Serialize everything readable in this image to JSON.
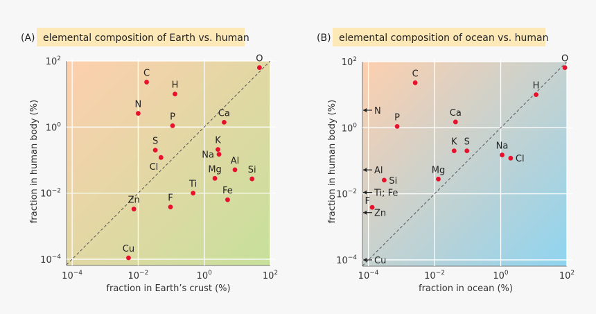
{
  "chart_data": [
    {
      "type": "scatter",
      "panel_label": "(A)",
      "title": "elemental composition of Earth vs. human",
      "xlabel": "fraction in Earth’s crust (%)",
      "ylabel": "fraction in human body (%)",
      "xscale": "log",
      "yscale": "log",
      "xlim": [
        0.0001,
        100
      ],
      "ylim": [
        0.0001,
        100
      ],
      "xtick_labels": [
        {
          "base": "10",
          "exp": "−4"
        },
        {
          "base": "10",
          "exp": "−2"
        },
        {
          "base": "10",
          "exp": "0"
        },
        {
          "base": "10",
          "exp": "2"
        }
      ],
      "ytick_labels": [
        {
          "base": "10",
          "exp": "2"
        },
        {
          "base": "10",
          "exp": "0"
        },
        {
          "base": "10",
          "exp": "−2"
        },
        {
          "base": "10",
          "exp": "−4"
        }
      ],
      "grid": true,
      "reference_line": "y = x (dashed)",
      "background_colors": [
        "#fdcfae",
        "#c6e09a"
      ],
      "point_color": "#e8112d",
      "points": [
        {
          "label": "C",
          "x": 0.018,
          "y": 23,
          "label_pos": "above"
        },
        {
          "label": "H",
          "x": 0.13,
          "y": 10,
          "label_pos": "above"
        },
        {
          "label": "N",
          "x": 0.01,
          "y": 2.6,
          "label_pos": "above"
        },
        {
          "label": "P",
          "x": 0.11,
          "y": 1.1,
          "label_pos": "above"
        },
        {
          "label": "Ca",
          "x": 4.0,
          "y": 1.4,
          "label_pos": "above"
        },
        {
          "label": "O",
          "x": 47,
          "y": 63,
          "label_pos": "above"
        },
        {
          "label": "S",
          "x": 0.033,
          "y": 0.2,
          "label_pos": "above"
        },
        {
          "label": "Cl",
          "x": 0.049,
          "y": 0.12,
          "label_pos": "below-left"
        },
        {
          "label": "K",
          "x": 2.6,
          "y": 0.21,
          "label_pos": "above"
        },
        {
          "label": "Na",
          "x": 2.8,
          "y": 0.15,
          "label_pos": "left"
        },
        {
          "label": "Al",
          "x": 8.5,
          "y": 0.051,
          "label_pos": "above"
        },
        {
          "label": "Si",
          "x": 28,
          "y": 0.027,
          "label_pos": "above"
        },
        {
          "label": "Mg",
          "x": 2.1,
          "y": 0.028,
          "label_pos": "above"
        },
        {
          "label": "Ti",
          "x": 0.46,
          "y": 0.01,
          "label_pos": "above"
        },
        {
          "label": "Fe",
          "x": 5.1,
          "y": 0.0063,
          "label_pos": "above"
        },
        {
          "label": "Zn",
          "x": 0.0074,
          "y": 0.0033,
          "label_pos": "above"
        },
        {
          "label": "F",
          "x": 0.095,
          "y": 0.0038,
          "label_pos": "above"
        },
        {
          "label": "Cu",
          "x": 0.0051,
          "y": 0.00011,
          "label_pos": "above"
        }
      ],
      "off_axis_markers": []
    },
    {
      "type": "scatter",
      "panel_label": "(B)",
      "title": "elemental composition of ocean vs. human",
      "xlabel": "fraction in ocean (%)",
      "ylabel": "fraction in human body (%)",
      "xscale": "log",
      "yscale": "log",
      "xlim": [
        0.0001,
        100
      ],
      "ylim": [
        0.0001,
        100
      ],
      "xtick_labels": [
        {
          "base": "10",
          "exp": "−4"
        },
        {
          "base": "10",
          "exp": "−2"
        },
        {
          "base": "10",
          "exp": "0"
        },
        {
          "base": "10",
          "exp": "2"
        }
      ],
      "ytick_labels": [
        {
          "base": "10",
          "exp": "2"
        },
        {
          "base": "10",
          "exp": "0"
        },
        {
          "base": "10",
          "exp": "−2"
        },
        {
          "base": "10",
          "exp": "−4"
        }
      ],
      "grid": true,
      "reference_line": "y = x (dashed)",
      "background_colors": [
        "#fdcfae",
        "#8fd4f0"
      ],
      "point_color": "#e8112d",
      "points": [
        {
          "label": "C",
          "x": 0.0026,
          "y": 23,
          "label_pos": "above"
        },
        {
          "label": "O",
          "x": 87,
          "y": 66,
          "label_pos": "above"
        },
        {
          "label": "H",
          "x": 11.7,
          "y": 10,
          "label_pos": "above"
        },
        {
          "label": "P",
          "x": 0.00074,
          "y": 1.1,
          "label_pos": "above"
        },
        {
          "label": "Ca",
          "x": 0.043,
          "y": 1.5,
          "label_pos": "above"
        },
        {
          "label": "K",
          "x": 0.039,
          "y": 0.2,
          "label_pos": "above"
        },
        {
          "label": "S",
          "x": 0.095,
          "y": 0.2,
          "label_pos": "above"
        },
        {
          "label": "Na",
          "x": 1.1,
          "y": 0.15,
          "label_pos": "above"
        },
        {
          "label": "Cl",
          "x": 2.0,
          "y": 0.12,
          "label_pos": "right"
        },
        {
          "label": "Mg",
          "x": 0.013,
          "y": 0.028,
          "label_pos": "above"
        },
        {
          "label": "Si",
          "x": 0.0003,
          "y": 0.026,
          "label_pos": "right"
        },
        {
          "label": "F",
          "x": 0.00013,
          "y": 0.0039,
          "label_pos": "above-left"
        }
      ],
      "off_axis_markers": [
        {
          "label": "N",
          "y": 3.4
        },
        {
          "label": "Al",
          "y": 0.053
        },
        {
          "label": "Ti; Fe",
          "y": 0.011
        },
        {
          "label": "Zn",
          "y": 0.0027
        },
        {
          "label": "Cu",
          "y": 0.0001
        }
      ]
    }
  ]
}
